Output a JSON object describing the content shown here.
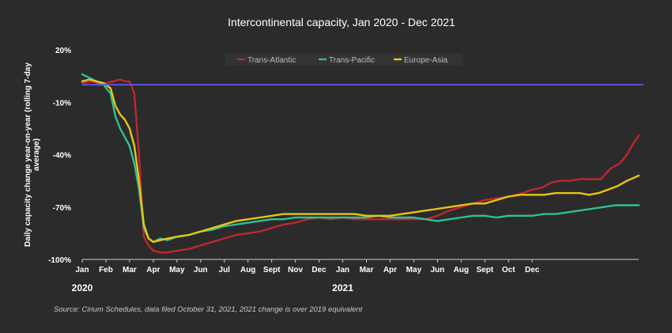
{
  "chart_data": {
    "type": "line",
    "title": "Intercontinental capacity, Jan 2020 - Dec 2021",
    "ylabel": "Daily capacity change year-on-year (rolling 7-day average)",
    "ylabel_lines": [
      "Daily capacity change year-on-year (rolling 7-day",
      "average)"
    ],
    "source": "Source: Cirium Schedules, data filed October 31, 2021, 2021 change is over 2019 equivalent",
    "ylim": [
      -100,
      20
    ],
    "y_ticks": [
      {
        "value": 20,
        "label": "20%"
      },
      {
        "value": -10,
        "label": "-10%"
      },
      {
        "value": -40,
        "label": "-40%"
      },
      {
        "value": -70,
        "label": "-70%"
      },
      {
        "value": -100,
        "label": "-100%"
      }
    ],
    "x_range": [
      0,
      23.5
    ],
    "x_ticks": [
      "Jan",
      "Feb",
      "Mar",
      "Apr",
      "May",
      "Jun",
      "Jul",
      "Aug",
      "Sept",
      "Nov",
      "Dec",
      "Jan",
      "Mar",
      "Apr",
      "May",
      "Jun",
      "Aug",
      "Sept",
      "Oct",
      "Dec"
    ],
    "x_tick_positions": [
      0,
      1,
      2,
      3,
      4,
      5,
      6,
      7,
      8,
      9,
      10,
      11,
      12,
      13,
      14,
      15,
      16,
      17,
      18,
      19
    ],
    "year_labels": [
      "2020",
      "2021"
    ],
    "year_positions": [
      0,
      11
    ],
    "reference_line": {
      "value": 0,
      "color": "#5a55d6"
    },
    "legend_placement": "top-center",
    "grid": false,
    "series": [
      {
        "name": "Trans-Atlantic",
        "color": "#c0262d",
        "x": [
          0,
          0.4,
          0.8,
          1.0,
          1.3,
          1.6,
          1.8,
          2.0,
          2.2,
          2.4,
          2.6,
          2.8,
          3.0,
          3.3,
          3.6,
          4.0,
          4.5,
          5.0,
          5.5,
          6.0,
          6.5,
          7.0,
          7.5,
          8.0,
          8.5,
          9.0,
          9.5,
          10.0,
          10.5,
          11.0,
          11.5,
          12.0,
          12.5,
          13.0,
          13.5,
          14.0,
          14.5,
          15.0,
          15.5,
          16.0,
          16.5,
          17.0,
          17.5,
          18.0,
          18.3,
          18.6,
          19.0,
          19.4,
          19.8,
          20.2,
          20.6,
          21.0,
          21.4,
          21.9,
          22.3,
          22.7,
          23.0,
          23.3,
          23.5
        ],
        "values": [
          1,
          2,
          0,
          1,
          2,
          3,
          2,
          2,
          -5,
          -40,
          -87,
          -92,
          -95,
          -96,
          -96,
          -95,
          -94,
          -92,
          -90,
          -88,
          -86,
          -85,
          -84,
          -82,
          -80,
          -79,
          -77,
          -76,
          -77,
          -76,
          -77,
          -77,
          -77,
          -77,
          -77,
          -77,
          -77,
          -75,
          -72,
          -70,
          -68,
          -66,
          -65,
          -64,
          -63,
          -62,
          -60,
          -59,
          -56,
          -55,
          -55,
          -54,
          -54,
          -54,
          -48,
          -45,
          -40,
          -33,
          -29
        ]
      },
      {
        "name": "Trans-Pacific",
        "color": "#2ec194",
        "x": [
          0,
          0.3,
          0.6,
          0.9,
          1.2,
          1.4,
          1.6,
          1.8,
          2.0,
          2.2,
          2.4,
          2.6,
          2.8,
          3.0,
          3.3,
          3.6,
          4.0,
          4.5,
          5.0,
          5.5,
          6.0,
          6.5,
          7.0,
          7.5,
          8.0,
          8.5,
          9.0,
          9.5,
          10.0,
          10.5,
          11.0,
          11.5,
          12.0,
          12.5,
          13.0,
          13.5,
          14.0,
          14.5,
          15.0,
          15.5,
          16.0,
          16.5,
          17.0,
          17.5,
          18.0,
          18.5,
          19.0,
          19.5,
          20.0,
          20.5,
          21.0,
          21.5,
          22.0,
          22.5,
          23.0,
          23.5
        ],
        "values": [
          6,
          4,
          2,
          0,
          -5,
          -18,
          -25,
          -30,
          -35,
          -45,
          -60,
          -82,
          -88,
          -90,
          -88,
          -89,
          -87,
          -86,
          -84,
          -83,
          -81,
          -80,
          -79,
          -78,
          -77,
          -77,
          -76,
          -76,
          -76,
          -76,
          -76,
          -76,
          -76,
          -75,
          -76,
          -76,
          -76,
          -77,
          -78,
          -77,
          -76,
          -75,
          -75,
          -76,
          -75,
          -75,
          -75,
          -74,
          -74,
          -73,
          -72,
          -71,
          -70,
          -69,
          -69,
          -69
        ]
      },
      {
        "name": "Europe-Asia",
        "color": "#e5c617",
        "x": [
          0,
          0.3,
          0.6,
          0.9,
          1.2,
          1.4,
          1.6,
          1.8,
          2.0,
          2.2,
          2.4,
          2.6,
          2.8,
          3.0,
          3.3,
          3.6,
          4.0,
          4.5,
          5.0,
          5.5,
          6.0,
          6.5,
          7.0,
          7.5,
          8.0,
          8.5,
          9.0,
          9.5,
          10.0,
          10.5,
          11.0,
          11.5,
          12.0,
          12.5,
          13.0,
          13.5,
          14.0,
          14.5,
          15.0,
          15.5,
          16.0,
          16.5,
          17.0,
          17.5,
          18.0,
          18.5,
          19.0,
          19.5,
          20.0,
          20.5,
          21.0,
          21.4,
          21.8,
          22.2,
          22.6,
          23.0,
          23.5
        ],
        "values": [
          2,
          3,
          2,
          1,
          -2,
          -12,
          -17,
          -20,
          -25,
          -35,
          -55,
          -80,
          -88,
          -90,
          -89,
          -88,
          -87,
          -86,
          -84,
          -82,
          -80,
          -78,
          -77,
          -76,
          -75,
          -74,
          -74,
          -74,
          -74,
          -74,
          -74,
          -74,
          -75,
          -75,
          -75,
          -74,
          -73,
          -72,
          -71,
          -70,
          -69,
          -68,
          -68,
          -66,
          -64,
          -63,
          -63,
          -63,
          -62,
          -62,
          -62,
          -63,
          -62,
          -60,
          -58,
          -55,
          -52
        ]
      }
    ]
  }
}
